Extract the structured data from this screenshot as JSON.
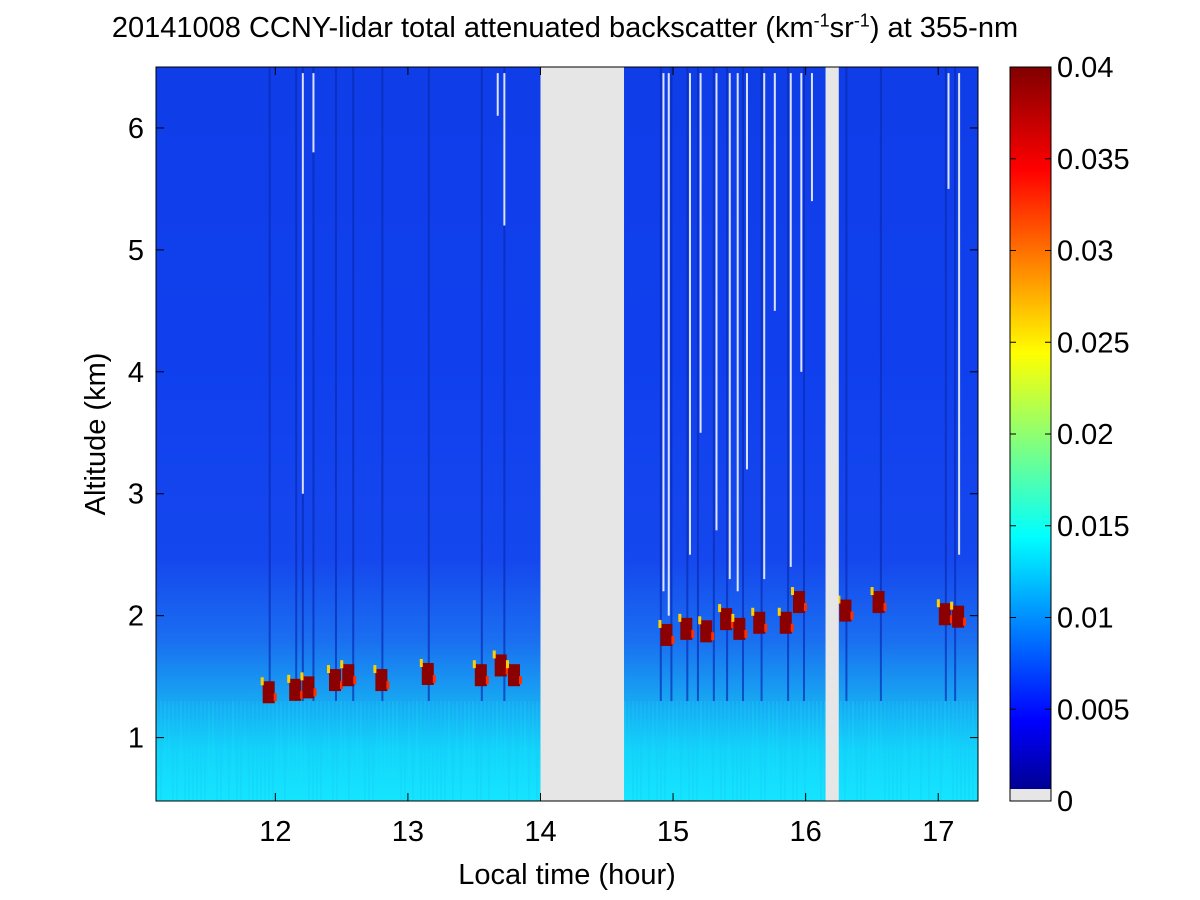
{
  "chart_data": {
    "type": "heatmap",
    "title_parts": {
      "prefix": "20141008 CCNY-lidar total attenuated backscatter (km",
      "sup1": "-1",
      "mid": "sr",
      "sup2": "-1",
      "suffix": ") at 355-nm"
    },
    "xlabel": "Local time (hour)",
    "ylabel": "Altitude (km)",
    "xlim": [
      11.1,
      17.3
    ],
    "ylim": [
      0.48,
      6.5
    ],
    "x_ticks": [
      "12",
      "13",
      "14",
      "15",
      "16",
      "17"
    ],
    "y_ticks": [
      "1",
      "2",
      "3",
      "4",
      "5",
      "6"
    ],
    "colorbar": {
      "colormap": "jet",
      "range": [
        0,
        0.04
      ],
      "tick_labels": [
        "0",
        "0.005",
        "0.01",
        "0.015",
        "0.02",
        "0.025",
        "0.03",
        "0.035",
        "0.04"
      ],
      "no_data_color": "#e6e6e6"
    },
    "data_gaps_hours": [
      [
        14.0,
        14.63
      ],
      [
        16.15,
        16.25
      ]
    ],
    "boundary_layer_top_km": [
      {
        "time": 11.95,
        "alt": 1.38
      },
      {
        "time": 12.15,
        "alt": 1.4
      },
      {
        "time": 12.25,
        "alt": 1.42
      },
      {
        "time": 12.45,
        "alt": 1.48
      },
      {
        "time": 12.55,
        "alt": 1.52
      },
      {
        "time": 12.8,
        "alt": 1.48
      },
      {
        "time": 13.15,
        "alt": 1.53
      },
      {
        "time": 13.55,
        "alt": 1.52
      },
      {
        "time": 13.7,
        "alt": 1.6
      },
      {
        "time": 13.8,
        "alt": 1.52
      },
      {
        "time": 14.95,
        "alt": 1.85
      },
      {
        "time": 15.1,
        "alt": 1.9
      },
      {
        "time": 15.25,
        "alt": 1.88
      },
      {
        "time": 15.4,
        "alt": 1.98
      },
      {
        "time": 15.5,
        "alt": 1.9
      },
      {
        "time": 15.65,
        "alt": 1.95
      },
      {
        "time": 15.85,
        "alt": 1.95
      },
      {
        "time": 15.95,
        "alt": 2.12
      },
      {
        "time": 16.3,
        "alt": 2.05
      },
      {
        "time": 16.55,
        "alt": 2.12
      },
      {
        "time": 17.05,
        "alt": 2.02
      },
      {
        "time": 17.15,
        "alt": 2.0
      }
    ]
  }
}
